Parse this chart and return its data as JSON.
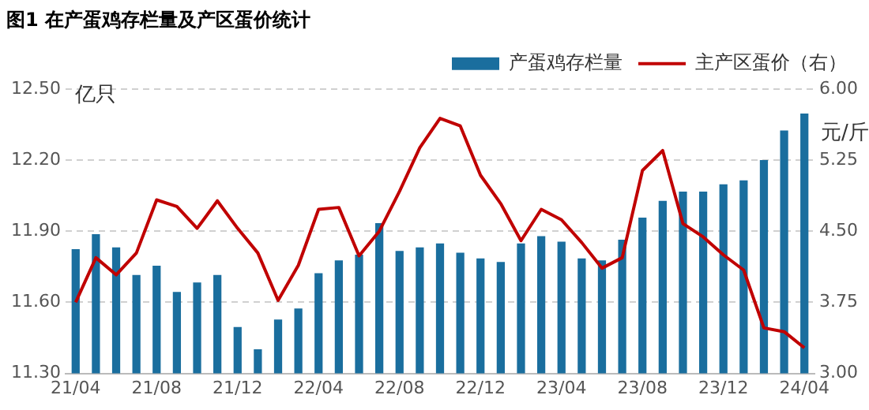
{
  "chart_data": {
    "type": "bar",
    "title": "图1 在产蛋鸡存栏量及产区蛋价统计",
    "categories": [
      "21/04",
      null,
      null,
      null,
      "21/08",
      null,
      null,
      null,
      "21/12",
      null,
      null,
      null,
      "22/04",
      null,
      null,
      null,
      "22/08",
      null,
      null,
      null,
      "22/12",
      null,
      null,
      null,
      "23/04",
      null,
      null,
      null,
      "23/08",
      null,
      null,
      null,
      "23/12",
      null,
      null,
      null,
      "24/04"
    ],
    "series": [
      {
        "name": "产蛋鸡存栏量",
        "color": "#1a6e9e",
        "values": [
          11.824,
          11.887,
          11.832,
          11.715,
          11.754,
          11.644,
          11.684,
          11.715,
          11.496,
          11.402,
          11.527,
          11.574,
          11.723,
          11.777,
          11.801,
          11.934,
          11.817,
          11.832,
          11.848,
          11.809,
          11.785,
          11.77,
          11.848,
          11.879,
          11.856,
          11.785,
          11.777,
          11.864,
          11.957,
          12.028,
          12.067,
          12.067,
          12.098,
          12.114,
          12.2,
          12.325,
          12.396
        ]
      },
      {
        "name": "主产区蛋价（右）",
        "type": "line",
        "axis": "y2",
        "color": "#c00000",
        "values": [
          3.75,
          4.22,
          4.04,
          4.27,
          4.83,
          4.76,
          4.53,
          4.82,
          4.53,
          4.27,
          3.77,
          4.14,
          4.73,
          4.75,
          4.24,
          4.5,
          4.92,
          5.38,
          5.69,
          5.61,
          5.09,
          4.79,
          4.4,
          4.73,
          4.62,
          4.38,
          4.11,
          4.22,
          5.14,
          5.35,
          4.58,
          4.44,
          4.25,
          4.09,
          3.48,
          3.44,
          3.27
        ]
      }
    ],
    "ylabel": "亿只",
    "y2label": "元/斤",
    "ylim": [
      11.3,
      12.5
    ],
    "yticks": [
      {
        "value": 11.3,
        "label": "11.30"
      },
      {
        "value": 11.6,
        "label": "11.60"
      },
      {
        "value": 11.9,
        "label": "11.90"
      },
      {
        "value": 12.2,
        "label": "12.20"
      },
      {
        "value": 12.5,
        "label": "12.50"
      }
    ],
    "y2lim": [
      3,
      6
    ],
    "y2ticks": [
      {
        "value": 3,
        "label": "3.00"
      },
      {
        "value": 3.75,
        "label": "3.75"
      },
      {
        "value": 4.5,
        "label": "4.50"
      },
      {
        "value": 5.25,
        "label": "5.25"
      },
      {
        "value": 6,
        "label": "6.00"
      }
    ],
    "grid": "y",
    "legend": "top right",
    "marker": "none",
    "line_style": "solid"
  }
}
